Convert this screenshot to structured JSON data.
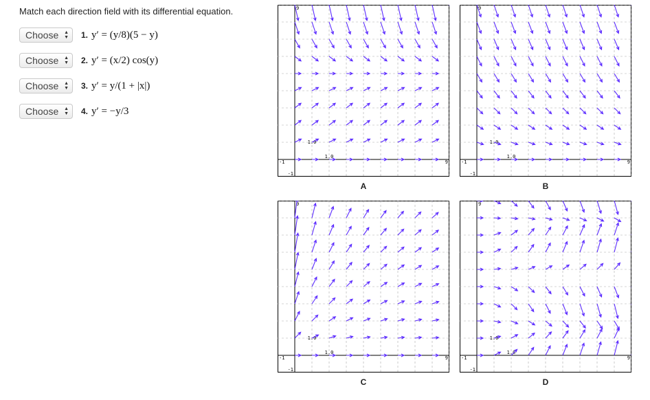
{
  "prompt": "Match each direction field with its differential equation.",
  "questions": [
    {
      "select_value": "Choose",
      "number": "1.",
      "equation": "y′ = (y/8)(5 − y)"
    },
    {
      "select_value": "Choose",
      "number": "2.",
      "equation": "y′ = (x/2) cos(y)"
    },
    {
      "select_value": "Choose",
      "number": "3.",
      "equation": "y′ = y/(1 + |x|)"
    },
    {
      "select_value": "Choose",
      "number": "4.",
      "equation": "y′ = −y/3"
    }
  ],
  "graphs": [
    {
      "label": "A",
      "field": "logistic"
    },
    {
      "label": "B",
      "field": "decay"
    },
    {
      "label": "C",
      "field": "growth"
    },
    {
      "label": "D",
      "field": "cosine"
    }
  ],
  "axis_ticks": {
    "x_min": "-1",
    "x_max": "9",
    "y_top": "9",
    "y_bottom": "-1",
    "center": "1.0"
  },
  "colors": {
    "arrow": "#5b2bff",
    "axis": "#000000",
    "grid": "#a9a9a9"
  }
}
